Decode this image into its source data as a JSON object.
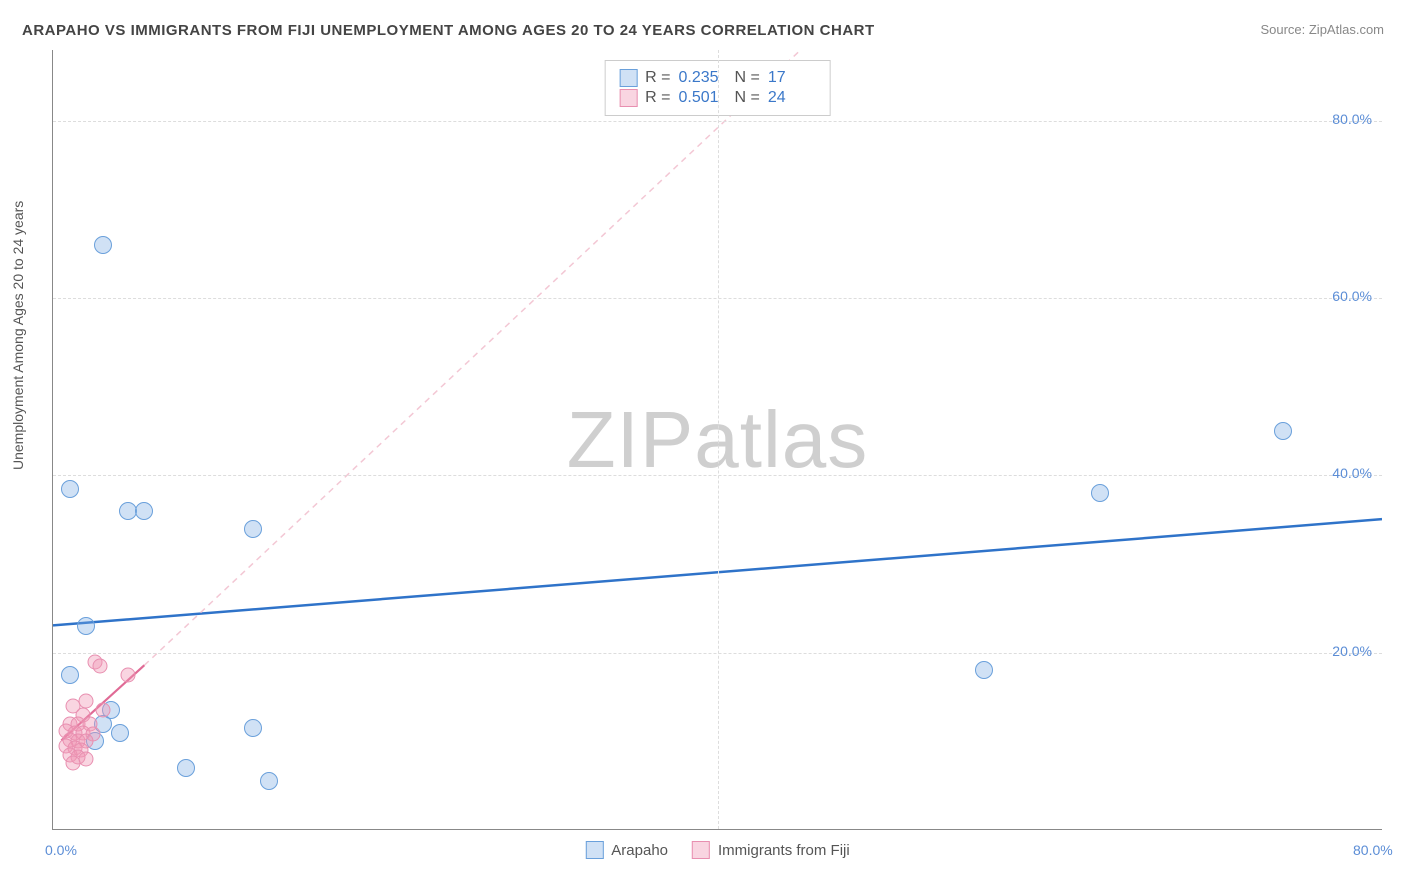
{
  "title": "ARAPAHO VS IMMIGRANTS FROM FIJI UNEMPLOYMENT AMONG AGES 20 TO 24 YEARS CORRELATION CHART",
  "source": "Source: ZipAtlas.com",
  "watermark": {
    "part1": "ZIP",
    "part2": "atlas"
  },
  "chart": {
    "type": "scatter",
    "ylabel": "Unemployment Among Ages 20 to 24 years",
    "xlim": [
      0,
      80
    ],
    "ylim": [
      0,
      88
    ],
    "yticks": [
      20,
      40,
      60,
      80
    ],
    "xticks_labels": [
      {
        "v": 0,
        "label": "0.0%"
      },
      {
        "v": 80,
        "label": "80.0%"
      }
    ],
    "ytick_labels": [
      "20.0%",
      "40.0%",
      "60.0%",
      "80.0%"
    ],
    "grid_color": "#dddddd",
    "background_color": "#ffffff",
    "series": [
      {
        "name": "Arapaho",
        "color_fill": "rgba(120,170,225,0.35)",
        "color_stroke": "#6aa0db",
        "marker_size": 18,
        "R": "0.235",
        "N": "17",
        "trend": {
          "x1": 0,
          "y1": 23,
          "x2": 80,
          "y2": 35,
          "stroke": "#2f73c9",
          "width": 2.5,
          "dash": ""
        },
        "points": [
          {
            "x": 3.0,
            "y": 66.0
          },
          {
            "x": 1.0,
            "y": 38.5
          },
          {
            "x": 4.5,
            "y": 36.0
          },
          {
            "x": 5.5,
            "y": 36.0
          },
          {
            "x": 12.0,
            "y": 34.0
          },
          {
            "x": 63.0,
            "y": 38.0
          },
          {
            "x": 74.0,
            "y": 45.0
          },
          {
            "x": 2.0,
            "y": 23.0
          },
          {
            "x": 1.0,
            "y": 17.5
          },
          {
            "x": 56.0,
            "y": 18.0
          },
          {
            "x": 3.0,
            "y": 12.0
          },
          {
            "x": 4.0,
            "y": 11.0
          },
          {
            "x": 12.0,
            "y": 11.5
          },
          {
            "x": 8.0,
            "y": 7.0
          },
          {
            "x": 13.0,
            "y": 5.5
          },
          {
            "x": 2.5,
            "y": 10.0
          },
          {
            "x": 3.5,
            "y": 13.5
          }
        ]
      },
      {
        "name": "Immigrants from Fiji",
        "color_fill": "rgba(240,150,180,0.4)",
        "color_stroke": "#e88fb0",
        "marker_size": 15,
        "R": "0.501",
        "N": "24",
        "trend": {
          "x1": 0.5,
          "y1": 10,
          "x2": 5.5,
          "y2": 18.5,
          "stroke": "#e06a95",
          "width": 2.2,
          "dash": ""
        },
        "trend_extend": {
          "x1": 5.5,
          "y1": 18.5,
          "x2": 45,
          "y2": 88,
          "stroke": "#f3c7d4",
          "width": 1.5,
          "dash": "6,5"
        },
        "points": [
          {
            "x": 2.5,
            "y": 19.0
          },
          {
            "x": 2.8,
            "y": 18.5
          },
          {
            "x": 4.5,
            "y": 17.5
          },
          {
            "x": 2.0,
            "y": 14.5
          },
          {
            "x": 1.2,
            "y": 14.0
          },
          {
            "x": 1.8,
            "y": 13.0
          },
          {
            "x": 3.0,
            "y": 13.5
          },
          {
            "x": 1.0,
            "y": 12.0
          },
          {
            "x": 1.5,
            "y": 12.0
          },
          {
            "x": 2.2,
            "y": 12.0
          },
          {
            "x": 0.8,
            "y": 11.2
          },
          {
            "x": 1.3,
            "y": 11.0
          },
          {
            "x": 1.8,
            "y": 11.0
          },
          {
            "x": 2.4,
            "y": 10.8
          },
          {
            "x": 1.0,
            "y": 10.2
          },
          {
            "x": 1.5,
            "y": 10.0
          },
          {
            "x": 2.0,
            "y": 10.0
          },
          {
            "x": 0.8,
            "y": 9.5
          },
          {
            "x": 1.3,
            "y": 9.2
          },
          {
            "x": 1.7,
            "y": 9.0
          },
          {
            "x": 1.0,
            "y": 8.5
          },
          {
            "x": 1.5,
            "y": 8.2
          },
          {
            "x": 2.0,
            "y": 8.0
          },
          {
            "x": 1.2,
            "y": 7.6
          }
        ]
      }
    ],
    "bottom_legend": [
      {
        "swatch": "blue",
        "label": "Arapaho"
      },
      {
        "swatch": "pink",
        "label": "Immigrants from Fiji"
      }
    ]
  }
}
